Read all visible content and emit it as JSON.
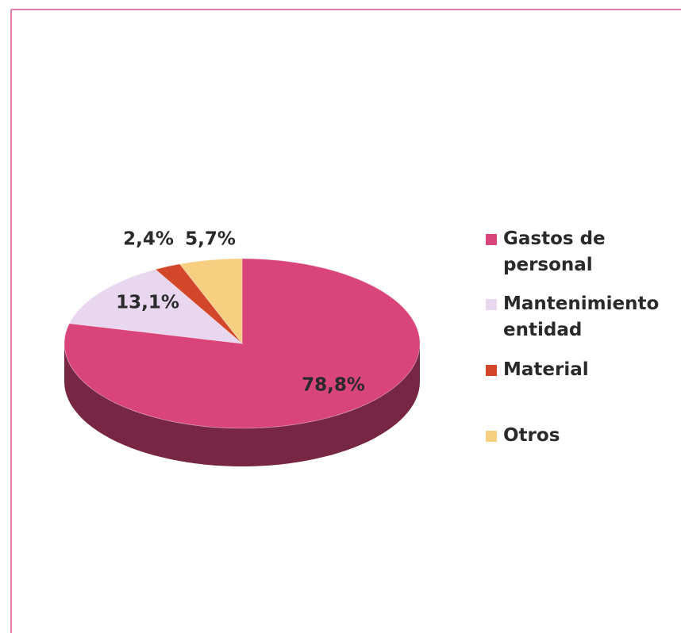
{
  "chart_data": {
    "type": "pie",
    "categories": [
      "Gastos de personal",
      "Mantenimiento entidad",
      "Material",
      "Otros"
    ],
    "values": [
      78.8,
      13.1,
      2.4,
      5.7
    ],
    "value_labels": [
      "78,8%",
      "13,1%",
      "2,4%",
      "5,7%"
    ],
    "colors": [
      "#d9457a",
      "#e9d6ef",
      "#d3462a",
      "#f6cf80"
    ],
    "legend": "right"
  }
}
